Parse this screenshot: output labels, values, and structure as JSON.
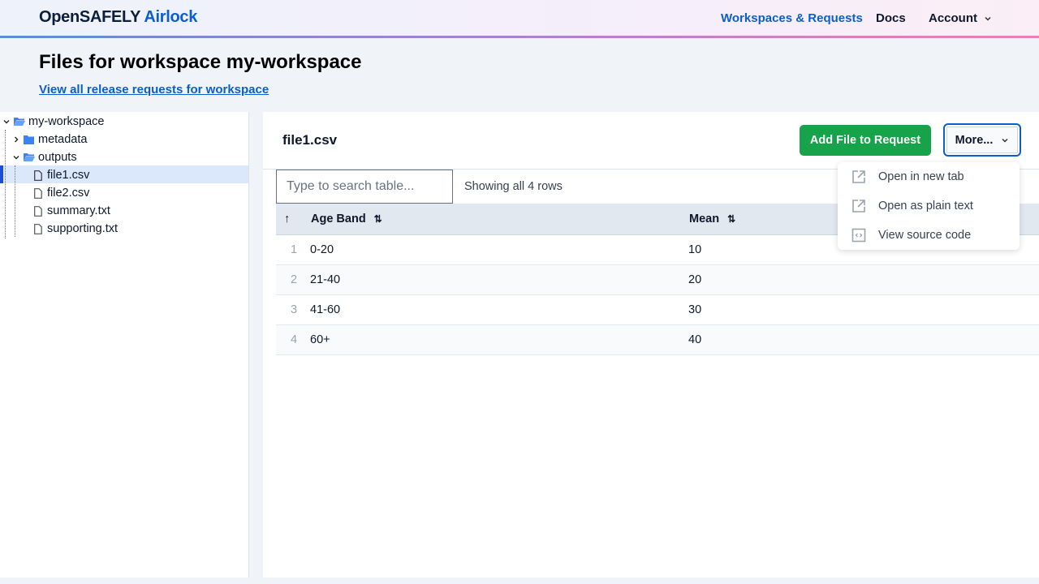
{
  "header": {
    "logo_main": "OpenSAFELY",
    "logo_accent": "Airlock",
    "nav": {
      "workspaces": "Workspaces & Requests",
      "docs": "Docs",
      "account": "Account"
    }
  },
  "page": {
    "title": "Files for workspace my-workspace",
    "link": "View all release requests for workspace"
  },
  "tree": {
    "root": "my-workspace",
    "items": [
      {
        "label": "metadata",
        "type": "folder"
      },
      {
        "label": "outputs",
        "type": "folder-open"
      },
      {
        "label": "file1.csv",
        "type": "file",
        "selected": true
      },
      {
        "label": "file2.csv",
        "type": "file"
      },
      {
        "label": "summary.txt",
        "type": "file"
      },
      {
        "label": "supporting.txt",
        "type": "file"
      }
    ]
  },
  "file": {
    "name": "file1.csv",
    "add_button": "Add File to Request",
    "more_button": "More..."
  },
  "menu": {
    "items": [
      "Open in new tab",
      "Open as plain text",
      "View source code"
    ]
  },
  "table": {
    "search_placeholder": "Type to search table...",
    "count": "Showing all 4 rows",
    "columns": [
      "Age Band",
      "Mean"
    ],
    "rows": [
      {
        "n": "1",
        "age": "0-20",
        "mean": "10"
      },
      {
        "n": "2",
        "age": "21-40",
        "mean": "20"
      },
      {
        "n": "3",
        "age": "41-60",
        "mean": "30"
      },
      {
        "n": "4",
        "age": "60+",
        "mean": "40"
      }
    ]
  },
  "colors": {
    "primary": "#0b5fcc",
    "success": "#16a34a",
    "selected": "#dbe8fb"
  }
}
